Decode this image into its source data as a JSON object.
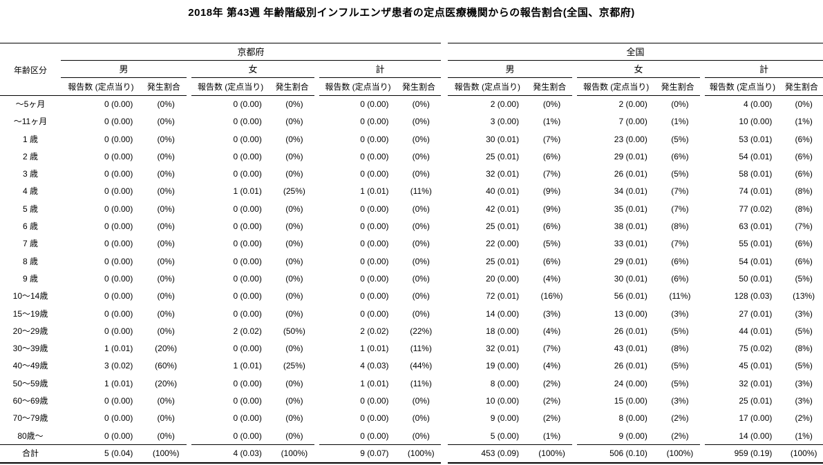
{
  "title": "2018年 第43週 年齢階級別インフルエンザ患者の定点医療機関からの報告割合(全国、京都府)",
  "chart_data": {
    "type": "table",
    "title": "2018年 第43週 年齢階級別インフルエンザ患者の定点医療機関からの報告割合(全国、京都府)",
    "age_column_header": "年齢区分",
    "section_headers": [
      "京都府",
      "全国"
    ],
    "gender_headers": [
      "男",
      "女",
      "計"
    ],
    "sub_headers": [
      "報告数 (定点当り)",
      "発生割合"
    ],
    "cell_format": "報告数 (定点当り) / 発生割合",
    "rows": [
      {
        "age": "～5ヶ月",
        "cells": [
          "0 (0.00)",
          "(0%)",
          "0 (0.00)",
          "(0%)",
          "0 (0.00)",
          "(0%)",
          "2 (0.00)",
          "(0%)",
          "2 (0.00)",
          "(0%)",
          "4 (0.00)",
          "(0%)"
        ]
      },
      {
        "age": "～11ヶ月",
        "cells": [
          "0 (0.00)",
          "(0%)",
          "0 (0.00)",
          "(0%)",
          "0 (0.00)",
          "(0%)",
          "3 (0.00)",
          "(1%)",
          "7 (0.00)",
          "(1%)",
          "10 (0.00)",
          "(1%)"
        ]
      },
      {
        "age": "1 歳",
        "cells": [
          "0 (0.00)",
          "(0%)",
          "0 (0.00)",
          "(0%)",
          "0 (0.00)",
          "(0%)",
          "30 (0.01)",
          "(7%)",
          "23 (0.00)",
          "(5%)",
          "53 (0.01)",
          "(6%)"
        ]
      },
      {
        "age": "2 歳",
        "cells": [
          "0 (0.00)",
          "(0%)",
          "0 (0.00)",
          "(0%)",
          "0 (0.00)",
          "(0%)",
          "25 (0.01)",
          "(6%)",
          "29 (0.01)",
          "(6%)",
          "54 (0.01)",
          "(6%)"
        ]
      },
      {
        "age": "3 歳",
        "cells": [
          "0 (0.00)",
          "(0%)",
          "0 (0.00)",
          "(0%)",
          "0 (0.00)",
          "(0%)",
          "32 (0.01)",
          "(7%)",
          "26 (0.01)",
          "(5%)",
          "58 (0.01)",
          "(6%)"
        ]
      },
      {
        "age": "4 歳",
        "cells": [
          "0 (0.00)",
          "(0%)",
          "1 (0.01)",
          "(25%)",
          "1 (0.01)",
          "(11%)",
          "40 (0.01)",
          "(9%)",
          "34 (0.01)",
          "(7%)",
          "74 (0.01)",
          "(8%)"
        ]
      },
      {
        "age": "5 歳",
        "cells": [
          "0 (0.00)",
          "(0%)",
          "0 (0.00)",
          "(0%)",
          "0 (0.00)",
          "(0%)",
          "42 (0.01)",
          "(9%)",
          "35 (0.01)",
          "(7%)",
          "77 (0.02)",
          "(8%)"
        ]
      },
      {
        "age": "6 歳",
        "cells": [
          "0 (0.00)",
          "(0%)",
          "0 (0.00)",
          "(0%)",
          "0 (0.00)",
          "(0%)",
          "25 (0.01)",
          "(6%)",
          "38 (0.01)",
          "(8%)",
          "63 (0.01)",
          "(7%)"
        ]
      },
      {
        "age": "7 歳",
        "cells": [
          "0 (0.00)",
          "(0%)",
          "0 (0.00)",
          "(0%)",
          "0 (0.00)",
          "(0%)",
          "22 (0.00)",
          "(5%)",
          "33 (0.01)",
          "(7%)",
          "55 (0.01)",
          "(6%)"
        ]
      },
      {
        "age": "8 歳",
        "cells": [
          "0 (0.00)",
          "(0%)",
          "0 (0.00)",
          "(0%)",
          "0 (0.00)",
          "(0%)",
          "25 (0.01)",
          "(6%)",
          "29 (0.01)",
          "(6%)",
          "54 (0.01)",
          "(6%)"
        ]
      },
      {
        "age": "9 歳",
        "cells": [
          "0 (0.00)",
          "(0%)",
          "0 (0.00)",
          "(0%)",
          "0 (0.00)",
          "(0%)",
          "20 (0.00)",
          "(4%)",
          "30 (0.01)",
          "(6%)",
          "50 (0.01)",
          "(5%)"
        ]
      },
      {
        "age": "10～14歳",
        "cells": [
          "0 (0.00)",
          "(0%)",
          "0 (0.00)",
          "(0%)",
          "0 (0.00)",
          "(0%)",
          "72 (0.01)",
          "(16%)",
          "56 (0.01)",
          "(11%)",
          "128 (0.03)",
          "(13%)"
        ]
      },
      {
        "age": "15～19歳",
        "cells": [
          "0 (0.00)",
          "(0%)",
          "0 (0.00)",
          "(0%)",
          "0 (0.00)",
          "(0%)",
          "14 (0.00)",
          "(3%)",
          "13 (0.00)",
          "(3%)",
          "27 (0.01)",
          "(3%)"
        ]
      },
      {
        "age": "20～29歳",
        "cells": [
          "0 (0.00)",
          "(0%)",
          "2 (0.02)",
          "(50%)",
          "2 (0.02)",
          "(22%)",
          "18 (0.00)",
          "(4%)",
          "26 (0.01)",
          "(5%)",
          "44 (0.01)",
          "(5%)"
        ]
      },
      {
        "age": "30～39歳",
        "cells": [
          "1 (0.01)",
          "(20%)",
          "0 (0.00)",
          "(0%)",
          "1 (0.01)",
          "(11%)",
          "32 (0.01)",
          "(7%)",
          "43 (0.01)",
          "(8%)",
          "75 (0.02)",
          "(8%)"
        ]
      },
      {
        "age": "40～49歳",
        "cells": [
          "3 (0.02)",
          "(60%)",
          "1 (0.01)",
          "(25%)",
          "4 (0.03)",
          "(44%)",
          "19 (0.00)",
          "(4%)",
          "26 (0.01)",
          "(5%)",
          "45 (0.01)",
          "(5%)"
        ]
      },
      {
        "age": "50～59歳",
        "cells": [
          "1 (0.01)",
          "(20%)",
          "0 (0.00)",
          "(0%)",
          "1 (0.01)",
          "(11%)",
          "8 (0.00)",
          "(2%)",
          "24 (0.00)",
          "(5%)",
          "32 (0.01)",
          "(3%)"
        ]
      },
      {
        "age": "60～69歳",
        "cells": [
          "0 (0.00)",
          "(0%)",
          "0 (0.00)",
          "(0%)",
          "0 (0.00)",
          "(0%)",
          "10 (0.00)",
          "(2%)",
          "15 (0.00)",
          "(3%)",
          "25 (0.01)",
          "(3%)"
        ]
      },
      {
        "age": "70～79歳",
        "cells": [
          "0 (0.00)",
          "(0%)",
          "0 (0.00)",
          "(0%)",
          "0 (0.00)",
          "(0%)",
          "9 (0.00)",
          "(2%)",
          "8 (0.00)",
          "(2%)",
          "17 (0.00)",
          "(2%)"
        ]
      },
      {
        "age": "80歳～",
        "cells": [
          "0 (0.00)",
          "(0%)",
          "0 (0.00)",
          "(0%)",
          "0 (0.00)",
          "(0%)",
          "5 (0.00)",
          "(1%)",
          "9 (0.00)",
          "(2%)",
          "14 (0.00)",
          "(1%)"
        ]
      },
      {
        "age": "合計",
        "total": true,
        "cells": [
          "5 (0.04)",
          "(100%)",
          "4 (0.03)",
          "(100%)",
          "9 (0.07)",
          "(100%)",
          "453 (0.09)",
          "(100%)",
          "506 (0.10)",
          "(100%)",
          "959 (0.19)",
          "(100%)"
        ]
      }
    ]
  }
}
